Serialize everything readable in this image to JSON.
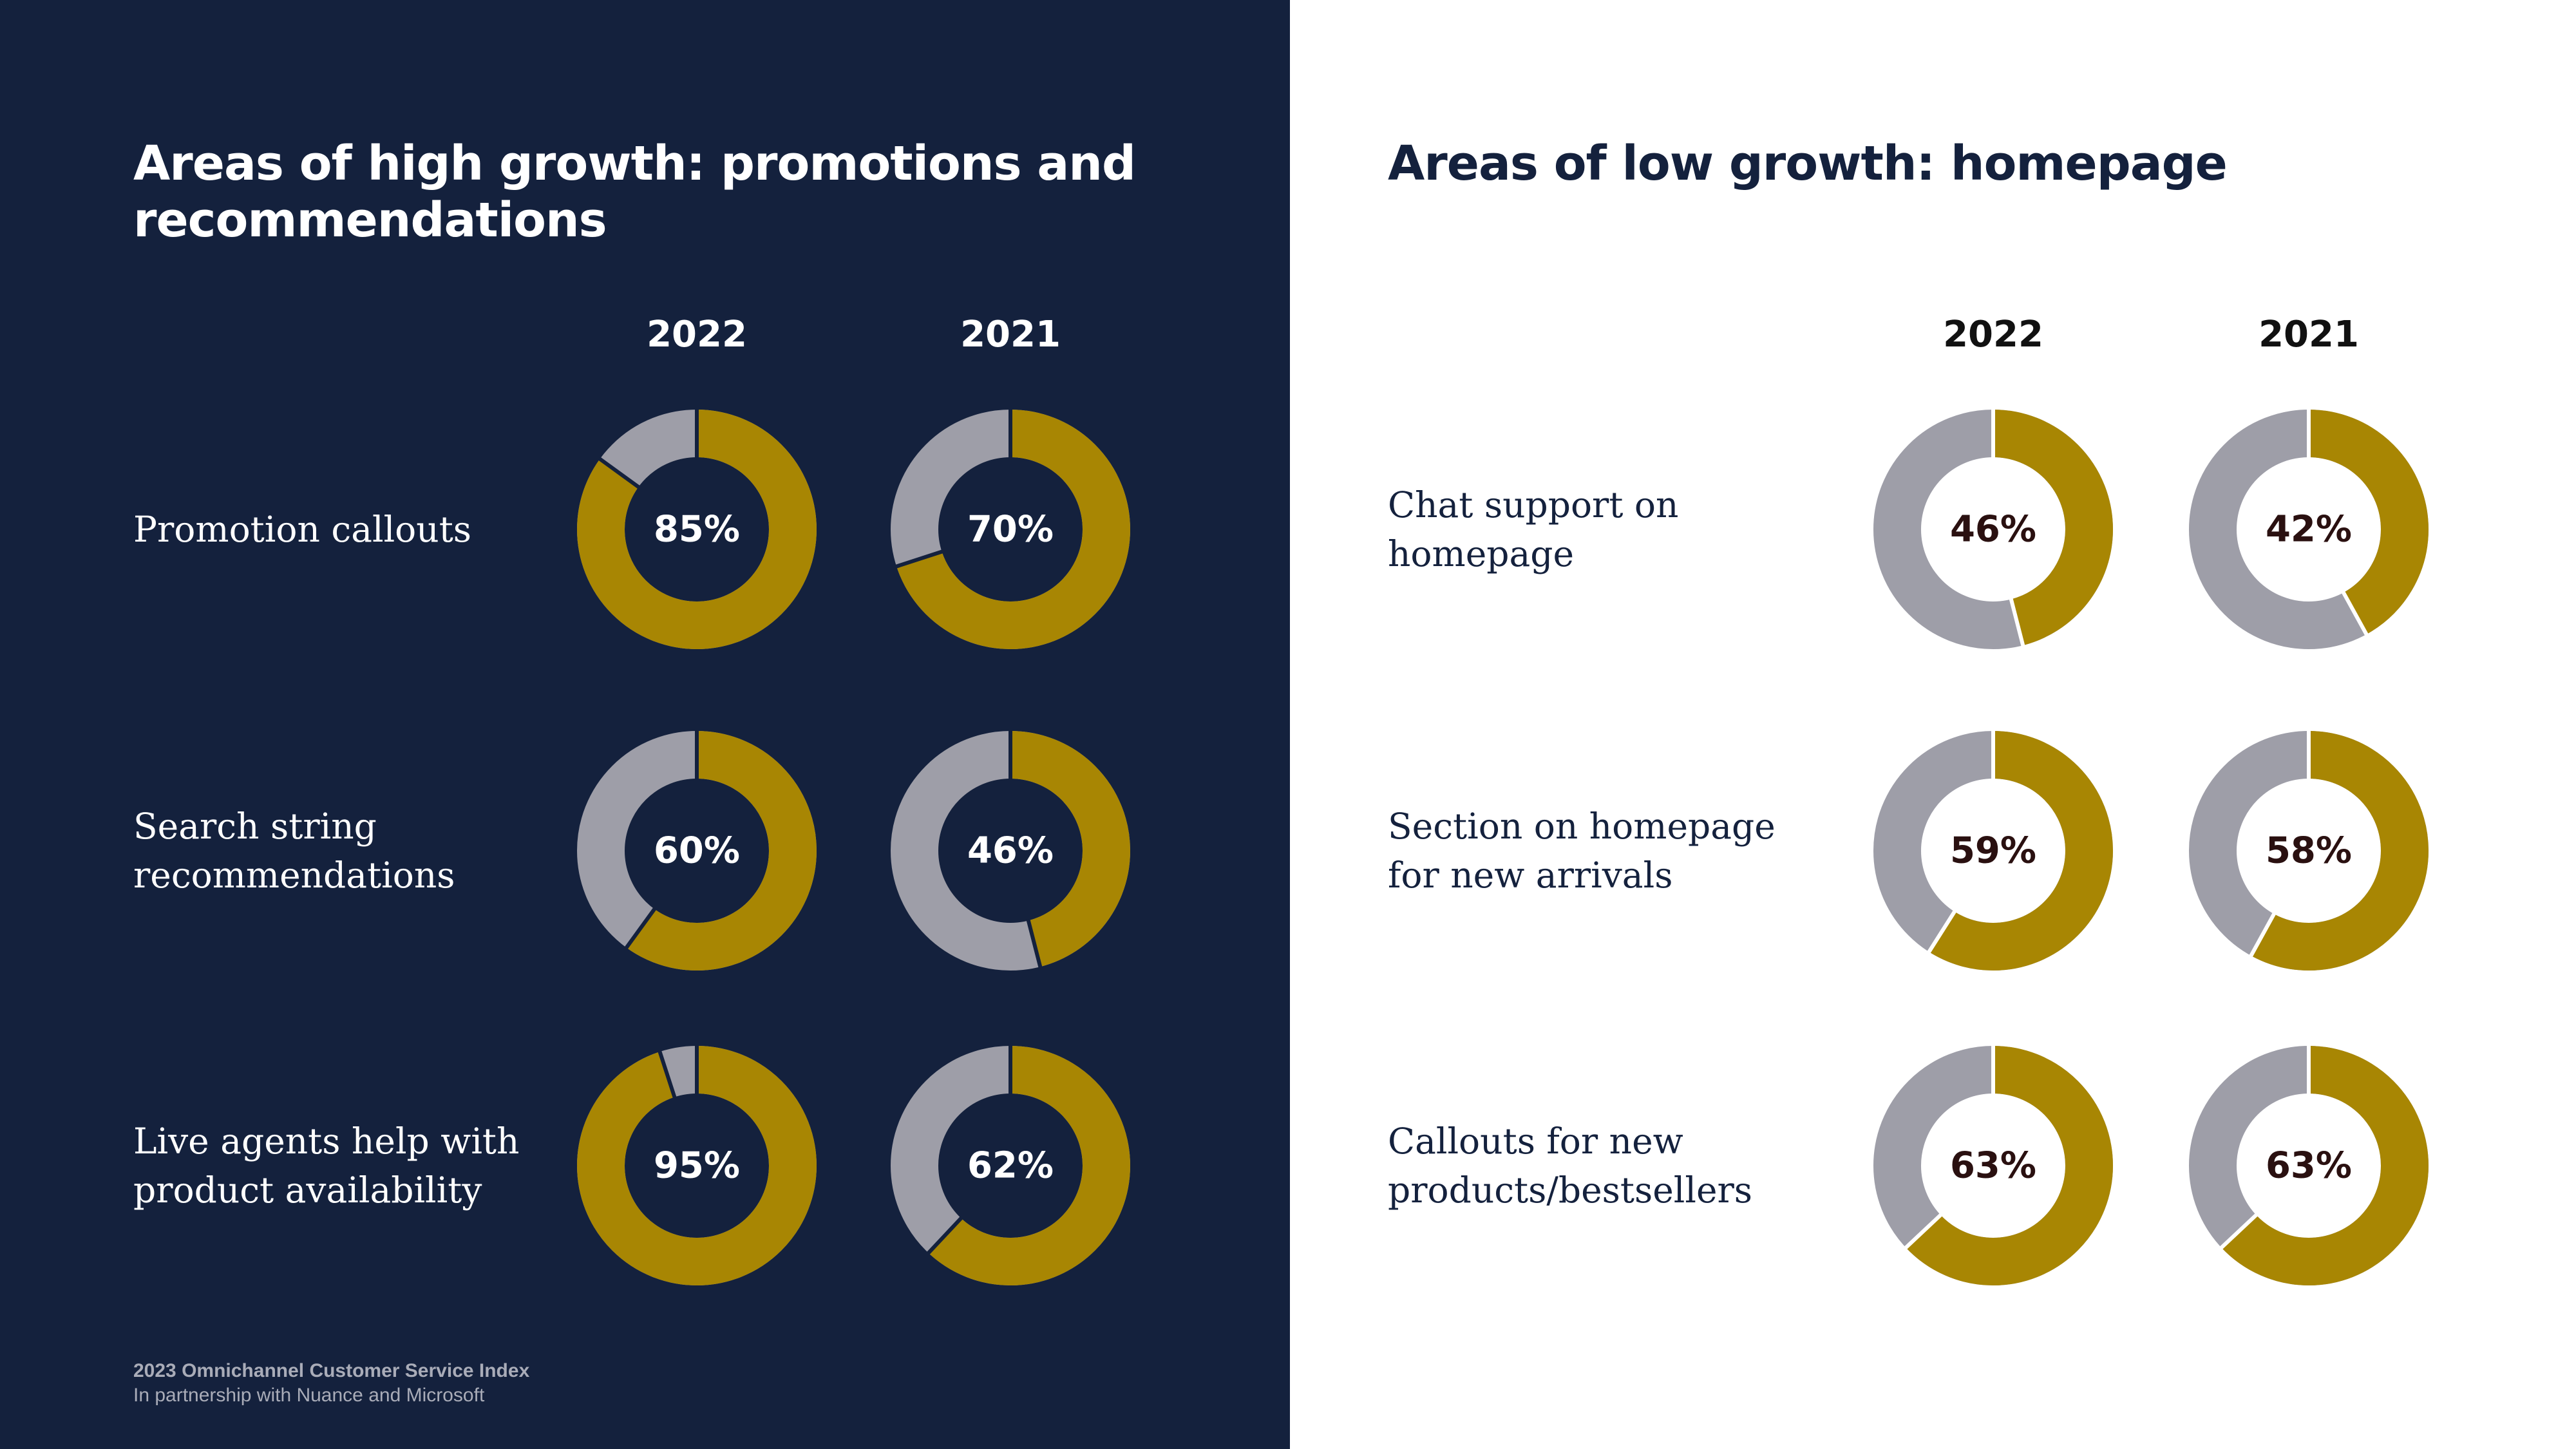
{
  "colors": {
    "filled": "#a88603",
    "remaining": "#9e9ea8",
    "left_bg": "#14213d",
    "right_bg": "#ffffff"
  },
  "left": {
    "title": "Areas of high growth: promotions and recommendations",
    "years": [
      "2022",
      "2021"
    ],
    "rows": [
      {
        "label": "Promotion callouts",
        "values": [
          85,
          70
        ],
        "value_labels": [
          "85%",
          "70%"
        ]
      },
      {
        "label": "Search string recommendations",
        "values": [
          60,
          46
        ],
        "value_labels": [
          "60%",
          "46%"
        ]
      },
      {
        "label": "Live agents help with product availability",
        "values": [
          95,
          62
        ],
        "value_labels": [
          "95%",
          "62%"
        ]
      }
    ]
  },
  "right": {
    "title": "Areas of low growth: homepage",
    "years": [
      "2022",
      "2021"
    ],
    "rows": [
      {
        "label": "Chat support on homepage",
        "values": [
          46,
          42
        ],
        "value_labels": [
          "46%",
          "42%"
        ]
      },
      {
        "label": "Section on homepage for new arrivals",
        "values": [
          59,
          58
        ],
        "value_labels": [
          "59%",
          "58%"
        ]
      },
      {
        "label": "Callouts for new products/bestsellers",
        "values": [
          63,
          63
        ],
        "value_labels": [
          "63%",
          "63%"
        ]
      }
    ]
  },
  "chart_data": [
    {
      "type": "pie",
      "title": "Areas of high growth: promotions and recommendations",
      "categories": [
        "Promotion callouts",
        "Search string recommendations",
        "Live agents help with product availability"
      ],
      "series": [
        {
          "name": "2022",
          "values": [
            85,
            60,
            95
          ]
        },
        {
          "name": "2021",
          "values": [
            70,
            46,
            62
          ]
        }
      ]
    },
    {
      "type": "pie",
      "title": "Areas of low growth: homepage",
      "categories": [
        "Chat support on homepage",
        "Section on homepage for new arrivals",
        "Callouts for new products/bestsellers"
      ],
      "series": [
        {
          "name": "2022",
          "values": [
            46,
            59,
            63
          ]
        },
        {
          "name": "2021",
          "values": [
            42,
            58,
            63
          ]
        }
      ]
    }
  ],
  "footer": {
    "title": "2023 Omnichannel Customer Service Index",
    "subtitle": "In partnership with Nuance and Microsoft"
  }
}
